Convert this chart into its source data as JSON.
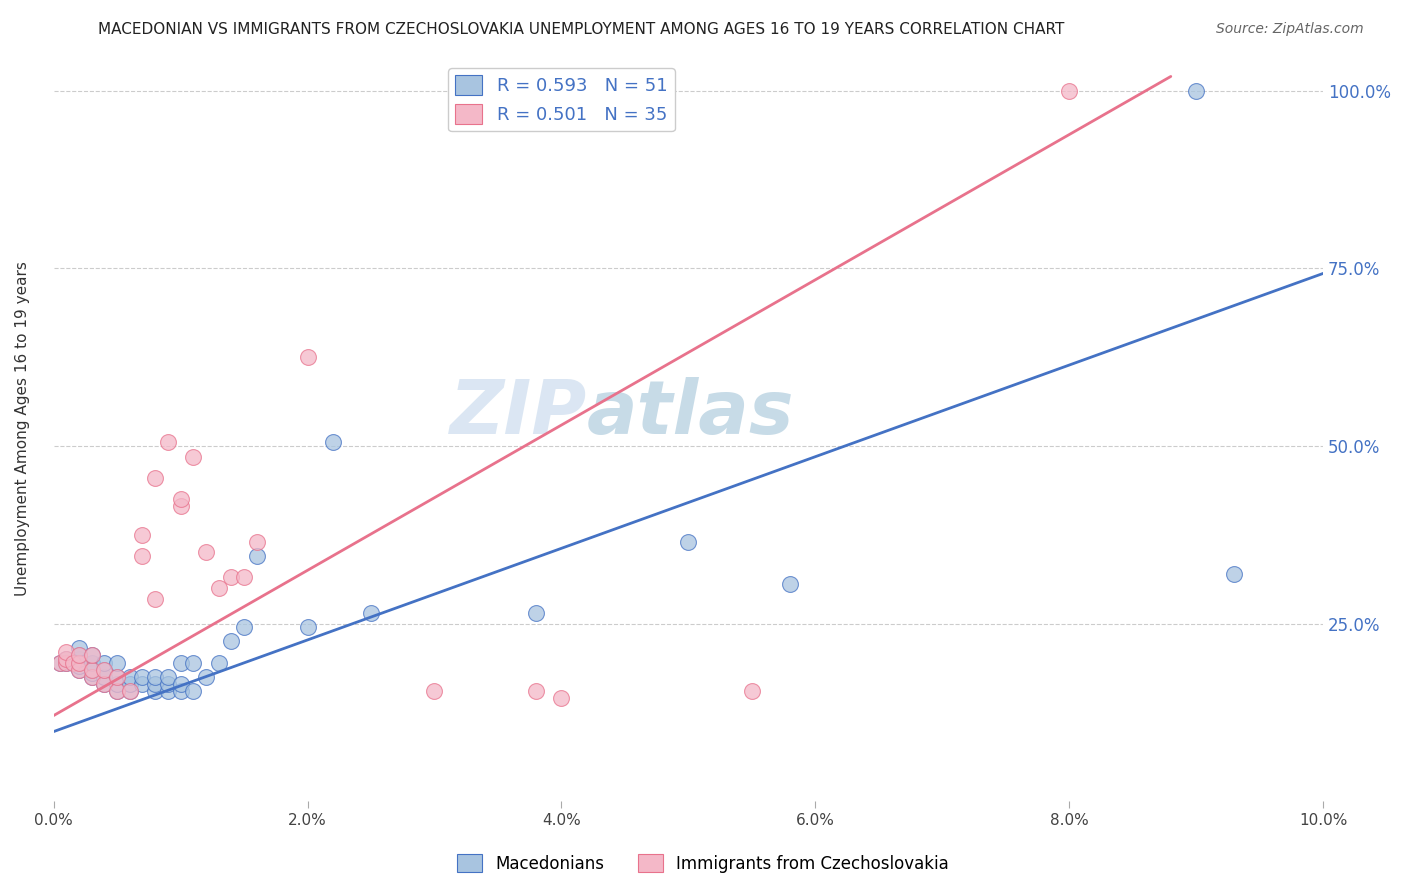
{
  "title": "MACEDONIAN VS IMMIGRANTS FROM CZECHOSLOVAKIA UNEMPLOYMENT AMONG AGES 16 TO 19 YEARS CORRELATION CHART",
  "source": "Source: ZipAtlas.com",
  "ylabel": "Unemployment Among Ages 16 to 19 years",
  "xlim": [
    0.0,
    0.1
  ],
  "ylim": [
    0.0,
    1.05
  ],
  "blue_R": 0.593,
  "blue_N": 51,
  "pink_R": 0.501,
  "pink_N": 35,
  "blue_color": "#a8c4e0",
  "pink_color": "#f4b8c8",
  "blue_line_color": "#4472c4",
  "pink_line_color": "#e8728c",
  "watermark_zip": "ZIP",
  "watermark_atlas": "atlas",
  "blue_scatter_x": [
    0.0005,
    0.001,
    0.001,
    0.0015,
    0.002,
    0.002,
    0.002,
    0.002,
    0.002,
    0.003,
    0.003,
    0.003,
    0.003,
    0.003,
    0.004,
    0.004,
    0.004,
    0.004,
    0.005,
    0.005,
    0.005,
    0.005,
    0.006,
    0.006,
    0.006,
    0.007,
    0.007,
    0.008,
    0.008,
    0.008,
    0.009,
    0.009,
    0.009,
    0.01,
    0.01,
    0.01,
    0.011,
    0.011,
    0.012,
    0.013,
    0.014,
    0.015,
    0.016,
    0.02,
    0.022,
    0.025,
    0.038,
    0.05,
    0.058,
    0.09,
    0.093
  ],
  "blue_scatter_y": [
    0.195,
    0.195,
    0.2,
    0.195,
    0.185,
    0.19,
    0.2,
    0.205,
    0.215,
    0.175,
    0.18,
    0.185,
    0.195,
    0.205,
    0.165,
    0.175,
    0.185,
    0.195,
    0.155,
    0.165,
    0.175,
    0.195,
    0.155,
    0.165,
    0.175,
    0.165,
    0.175,
    0.155,
    0.165,
    0.175,
    0.155,
    0.165,
    0.175,
    0.155,
    0.165,
    0.195,
    0.155,
    0.195,
    0.175,
    0.195,
    0.225,
    0.245,
    0.345,
    0.245,
    0.505,
    0.265,
    0.265,
    0.365,
    0.305,
    1.0,
    0.32
  ],
  "pink_scatter_x": [
    0.0005,
    0.001,
    0.001,
    0.001,
    0.0015,
    0.002,
    0.002,
    0.002,
    0.003,
    0.003,
    0.003,
    0.004,
    0.004,
    0.005,
    0.005,
    0.006,
    0.007,
    0.007,
    0.008,
    0.008,
    0.009,
    0.01,
    0.01,
    0.011,
    0.012,
    0.013,
    0.014,
    0.015,
    0.016,
    0.02,
    0.03,
    0.038,
    0.04,
    0.055,
    0.08
  ],
  "pink_scatter_y": [
    0.195,
    0.195,
    0.2,
    0.21,
    0.195,
    0.185,
    0.195,
    0.205,
    0.175,
    0.185,
    0.205,
    0.165,
    0.185,
    0.155,
    0.175,
    0.155,
    0.345,
    0.375,
    0.285,
    0.455,
    0.505,
    0.415,
    0.425,
    0.485,
    0.35,
    0.3,
    0.315,
    0.315,
    0.365,
    0.625,
    0.155,
    0.155,
    0.145,
    0.155,
    1.0
  ],
  "blue_line_x": [
    -0.002,
    0.105
  ],
  "blue_line_y": [
    0.085,
    0.775
  ],
  "pink_line_x": [
    -0.002,
    0.088
  ],
  "pink_line_y": [
    0.1,
    1.02
  ],
  "ytick_labels_right": [
    "100.0%",
    "75.0%",
    "50.0%",
    "25.0%"
  ],
  "ytick_vals_right": [
    1.0,
    0.75,
    0.5,
    0.25
  ],
  "xtick_labels": [
    "0.0%",
    "2.0%",
    "4.0%",
    "6.0%",
    "8.0%",
    "10.0%"
  ],
  "xtick_vals": [
    0.0,
    0.02,
    0.04,
    0.06,
    0.08,
    0.1
  ]
}
